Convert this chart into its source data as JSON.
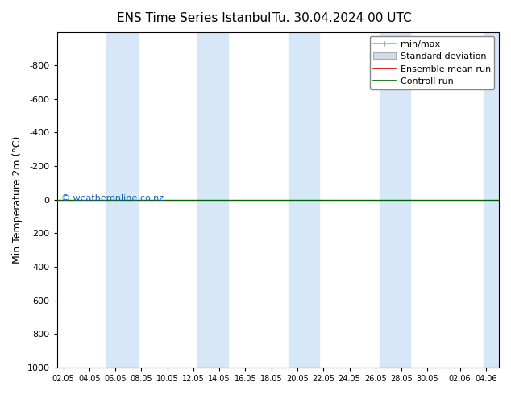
{
  "title1": "ENS Time Series Istanbul",
  "title2": "Tu. 30.04.2024 00 UTC",
  "ylabel": "Min Temperature 2m (°C)",
  "ylim_bottom": 1000,
  "ylim_top": -1000,
  "yticks": [
    -800,
    -600,
    -400,
    -200,
    0,
    200,
    400,
    600,
    800,
    1000
  ],
  "xlim_start": 0.0,
  "xlim_end": 34.0,
  "xtick_labels": [
    "02.05",
    "04.05",
    "06.05",
    "08.05",
    "10.05",
    "12.05",
    "14.05",
    "16.05",
    "18.05",
    "20.05",
    "22.05",
    "24.05",
    "26.05",
    "28.05",
    "30.05",
    "02.06",
    "04.06"
  ],
  "xtick_positions": [
    0.5,
    2.5,
    4.5,
    6.5,
    8.5,
    10.5,
    12.5,
    14.5,
    16.5,
    18.5,
    20.5,
    22.5,
    24.5,
    26.5,
    28.5,
    31.0,
    33.0
  ],
  "shade_bands": [
    [
      3.5,
      5.5
    ],
    [
      5.5,
      7.0
    ],
    [
      11.5,
      13.0
    ],
    [
      13.0,
      14.5
    ],
    [
      18.0,
      19.5
    ],
    [
      19.5,
      21.0
    ],
    [
      25.0,
      26.5
    ],
    [
      26.5,
      28.0
    ],
    [
      33.0,
      34.0
    ]
  ],
  "shade_color": "#d6e8f7",
  "control_run_color": "#006400",
  "ensemble_mean_color": "#cc0000",
  "bg_color": "#ffffff",
  "watermark": "© weatheronline.co.nz",
  "watermark_color": "#1a5fb4",
  "title_fontsize": 11,
  "axis_label_fontsize": 9,
  "tick_fontsize": 8,
  "legend_fontsize": 8
}
